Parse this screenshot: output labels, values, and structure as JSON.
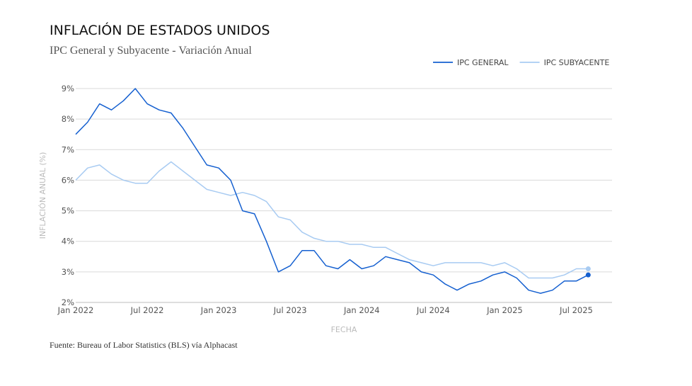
{
  "header": {
    "title": "INFLACIÓN DE ESTADOS UNIDOS",
    "subtitle": "IPC General y Subyacente - Variación Anual"
  },
  "footer": {
    "source": "Fuente: Bureau of Labor Statistics (BLS) vía Alphacast"
  },
  "chart_data": {
    "type": "line",
    "title": "INFLACIÓN DE ESTADOS UNIDOS",
    "subtitle": "IPC General y Subyacente - Variación Anual",
    "xlabel": "FECHA",
    "ylabel": "INFLACIÓN ANUAL (%)",
    "ylim": [
      2,
      9
    ],
    "yticks": [
      "2%",
      "3%",
      "4%",
      "5%",
      "6%",
      "7%",
      "8%",
      "9%"
    ],
    "xlim": [
      "2022-01",
      "2025-10"
    ],
    "xticks": [
      {
        "date": "2022-01",
        "label": "Jan 2022"
      },
      {
        "date": "2022-07",
        "label": "Jul 2022"
      },
      {
        "date": "2023-01",
        "label": "Jan 2023"
      },
      {
        "date": "2023-07",
        "label": "Jul 2023"
      },
      {
        "date": "2024-01",
        "label": "Jan 2024"
      },
      {
        "date": "2024-07",
        "label": "Jul 2024"
      },
      {
        "date": "2025-01",
        "label": "Jan 2025"
      },
      {
        "date": "2025-07",
        "label": "Jul 2025"
      }
    ],
    "grid": true,
    "legend_position": "top-right",
    "x": [
      "2022-01",
      "2022-02",
      "2022-03",
      "2022-04",
      "2022-05",
      "2022-06",
      "2022-07",
      "2022-08",
      "2022-09",
      "2022-10",
      "2022-11",
      "2022-12",
      "2023-01",
      "2023-02",
      "2023-03",
      "2023-04",
      "2023-05",
      "2023-06",
      "2023-07",
      "2023-08",
      "2023-09",
      "2023-10",
      "2023-11",
      "2023-12",
      "2024-01",
      "2024-02",
      "2024-03",
      "2024-04",
      "2024-05",
      "2024-06",
      "2024-07",
      "2024-08",
      "2024-09",
      "2024-10",
      "2024-11",
      "2024-12",
      "2025-01",
      "2025-02",
      "2025-03",
      "2025-04",
      "2025-05",
      "2025-06",
      "2025-07",
      "2025-08"
    ],
    "series": [
      {
        "name": "IPC GENERAL",
        "color": "#1560d0",
        "values": [
          7.5,
          7.9,
          8.5,
          8.3,
          8.6,
          9.0,
          8.5,
          8.3,
          8.2,
          7.7,
          7.1,
          6.5,
          6.4,
          6.0,
          5.0,
          4.9,
          4.0,
          3.0,
          3.2,
          3.7,
          3.7,
          3.2,
          3.1,
          3.4,
          3.1,
          3.2,
          3.5,
          3.4,
          3.3,
          3.0,
          2.9,
          2.6,
          2.4,
          2.6,
          2.7,
          2.9,
          3.0,
          2.8,
          2.4,
          2.3,
          2.4,
          2.7,
          2.7,
          2.9
        ]
      },
      {
        "name": "IPC SUBYACENTE",
        "color": "#a8cbf2",
        "values": [
          6.0,
          6.4,
          6.5,
          6.2,
          6.0,
          5.9,
          5.9,
          6.3,
          6.6,
          6.3,
          6.0,
          5.7,
          5.6,
          5.5,
          5.6,
          5.5,
          5.3,
          4.8,
          4.7,
          4.3,
          4.1,
          4.0,
          4.0,
          3.9,
          3.9,
          3.8,
          3.8,
          3.6,
          3.4,
          3.3,
          3.2,
          3.3,
          3.3,
          3.3,
          3.3,
          3.2,
          3.3,
          3.1,
          2.8,
          2.8,
          2.8,
          2.9,
          3.1,
          3.1
        ]
      }
    ]
  }
}
